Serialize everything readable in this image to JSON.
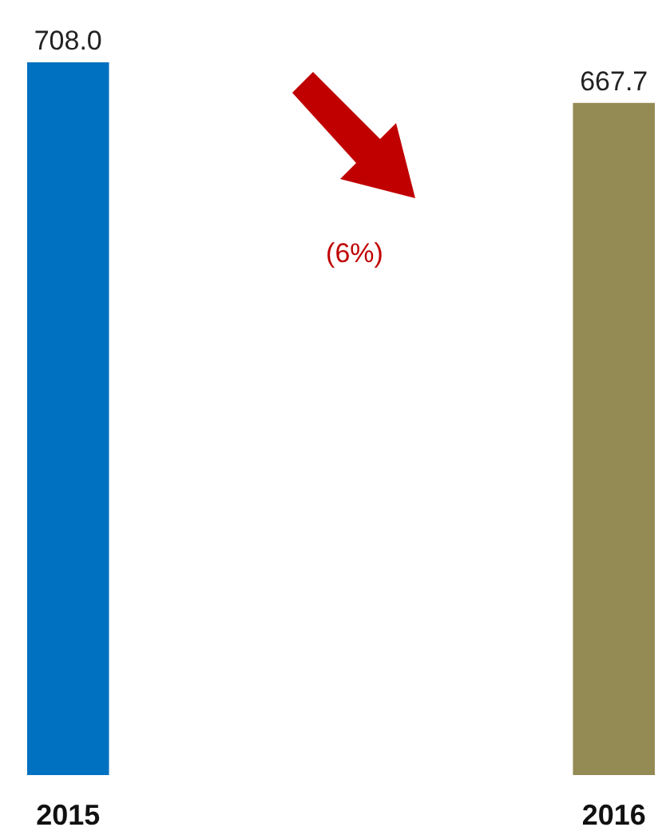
{
  "chart_data": {
    "type": "bar",
    "categories": [
      "2015",
      "2016"
    ],
    "values": [
      708.0,
      667.7
    ],
    "value_labels": [
      "708.0",
      "667.7"
    ],
    "colors": [
      "#0070c0",
      "#948a54"
    ],
    "annotations": [
      "(6%)"
    ]
  }
}
